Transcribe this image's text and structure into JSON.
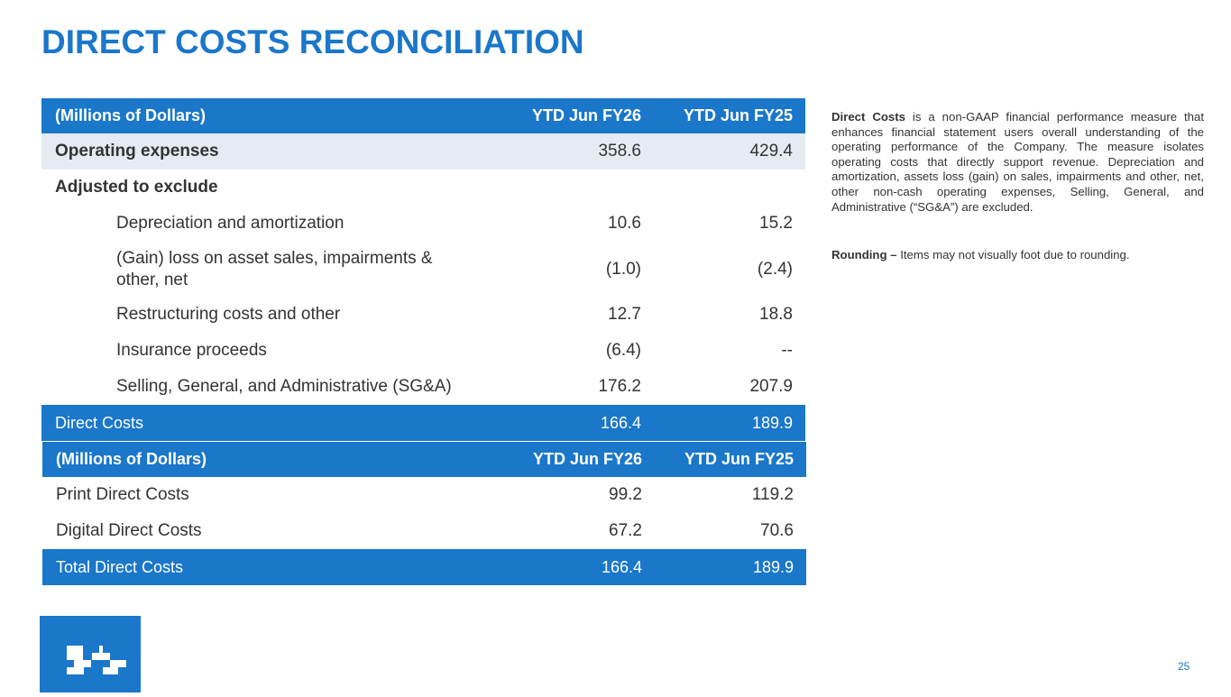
{
  "title": "DIRECT COSTS RECONCILIATION",
  "table1": {
    "header": {
      "label": "(Millions of Dollars)",
      "col1": "YTD Jun FY26",
      "col2": "YTD Jun FY25"
    },
    "rows": [
      {
        "label": "Operating expenses",
        "v1": "358.6",
        "v2": "429.4"
      },
      {
        "label": "Adjusted to exclude",
        "v1": "",
        "v2": ""
      },
      {
        "label": "Depreciation and amortization",
        "v1": "10.6",
        "v2": "15.2"
      },
      {
        "label": "(Gain) loss on asset sales, impairments &",
        "label2": "other, net",
        "v1": "(1.0)",
        "v2": "(2.4)"
      },
      {
        "label": "Restructuring costs and other",
        "v1": "12.7",
        "v2": "18.8"
      },
      {
        "label": "Insurance proceeds",
        "v1": "(6.4)",
        "v2": "--"
      },
      {
        "label": "Selling, General, and Administrative (SG&A)",
        "v1": "176.2",
        "v2": "207.9"
      }
    ],
    "total": {
      "label": "Direct Costs",
      "v1": "166.4",
      "v2": "189.9"
    }
  },
  "table2": {
    "header": {
      "label": "(Millions of Dollars)",
      "col1": "YTD Jun FY26",
      "col2": "YTD Jun FY25"
    },
    "rows": [
      {
        "label": "Print Direct Costs",
        "v1": "99.2",
        "v2": "119.2"
      },
      {
        "label": "Digital Direct Costs",
        "v1": "67.2",
        "v2": "70.6"
      }
    ],
    "total": {
      "label": "Total Direct Costs",
      "v1": "166.4",
      "v2": "189.9"
    }
  },
  "side": {
    "p1_bold": "Direct Costs",
    "p1_text": " is a non-GAAP financial performance measure that enhances financial statement users overall understanding of the operating performance of the Company. The measure isolates operating costs that directly support revenue. Depreciation and amortization, assets loss (gain) on sales, impairments and other, net, other non-cash operating expenses, Selling, General, and Administrative (“SG&A”) are excluded.",
    "p2_bold": "Rounding –",
    "p2_text": " Items may not visually foot due to rounding."
  },
  "logo_icon": "company-logo-icon",
  "page_number": "25",
  "colors": {
    "accent": "#1a77c9",
    "shade": "#e6ebf3"
  }
}
